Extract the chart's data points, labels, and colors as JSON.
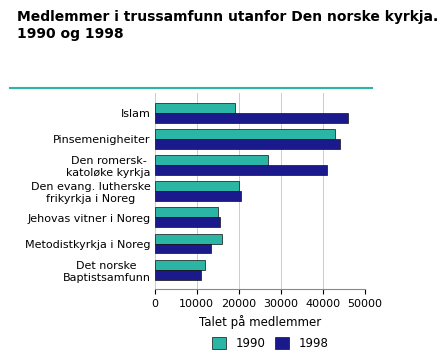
{
  "title": "Medlemmer i trussamfunn utanfor Den norske kyrkja.\n1990 og 1998",
  "categories": [
    "Det norske\nBaptistsamfunn",
    "Metodistkyrkja i Noreg",
    "Jehovas vitner i Noreg",
    "Den evang. lutherske\nfrikyrkja i Noreg",
    "Den romersk-\nkatoløke kyrkja",
    "Pinsemenigheiter",
    "Islam"
  ],
  "values_1990": [
    12000,
    16000,
    15000,
    20000,
    27000,
    43000,
    19000
  ],
  "values_1998": [
    11000,
    13500,
    15500,
    20500,
    41000,
    44000,
    46000
  ],
  "color_1990": "#2ab5a5",
  "color_1998": "#1a1a8c",
  "xlabel": "Talet på medlemmer",
  "xlim": [
    0,
    50000
  ],
  "xticks": [
    0,
    10000,
    20000,
    30000,
    40000,
    50000
  ],
  "xtick_labels": [
    "0",
    "10000",
    "20000",
    "30000",
    "40000",
    "50000"
  ],
  "legend_labels": [
    "1990",
    "1998"
  ],
  "background_color": "#ffffff",
  "title_fontsize": 10,
  "label_fontsize": 8.5,
  "tick_fontsize": 8,
  "separator_color": "#2ab5a5"
}
